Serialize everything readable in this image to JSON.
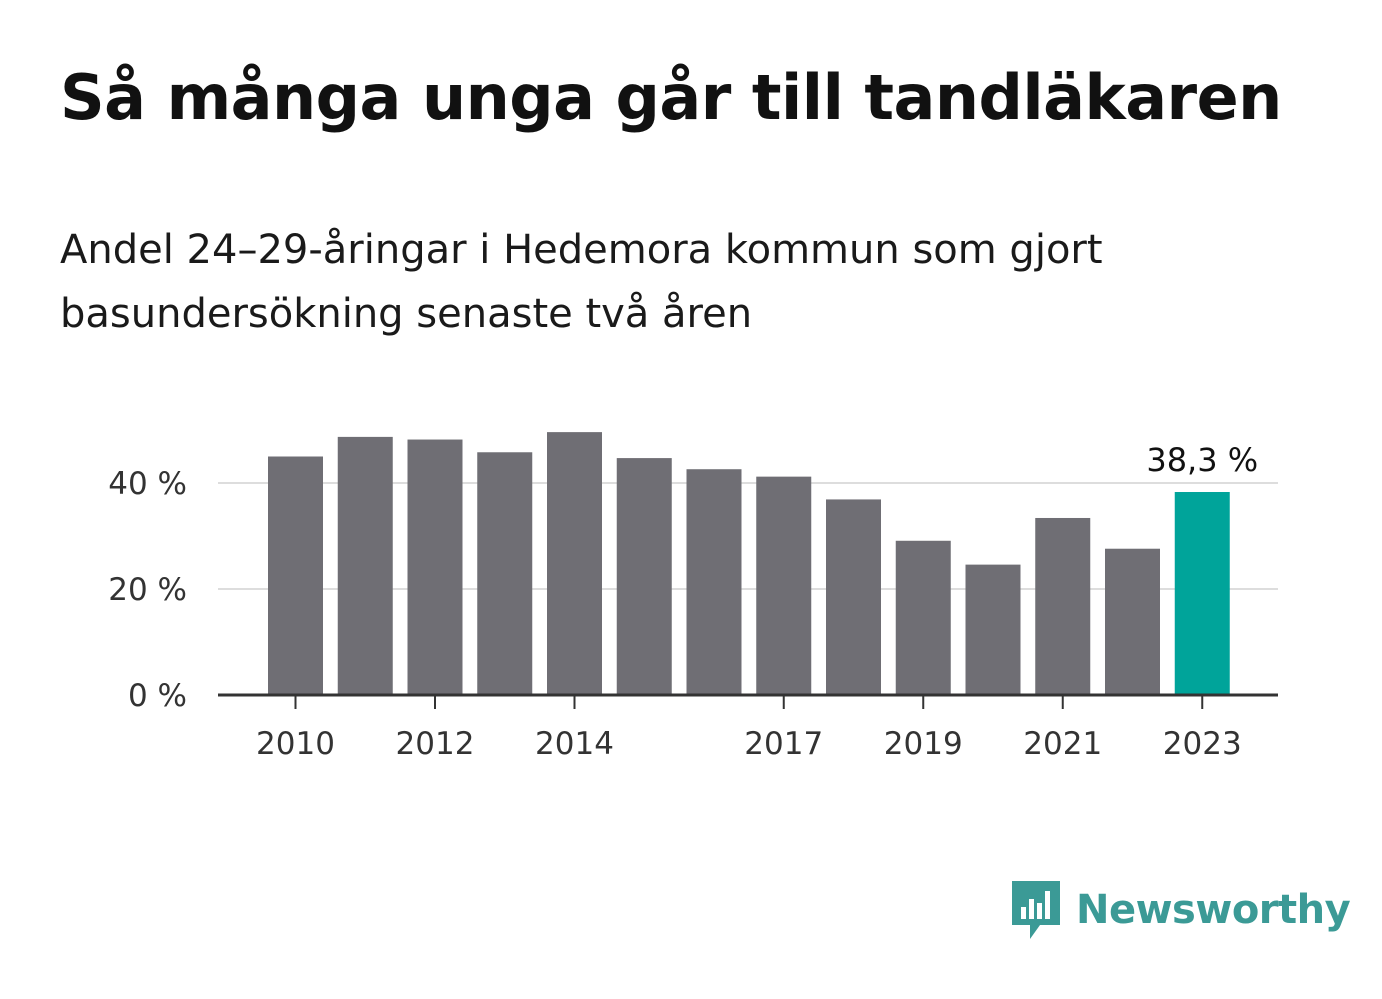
{
  "title": "Så många unga går till tandläkaren",
  "subtitle": "Andel 24–29-åringar i Hedemora kommun som gjort basundersökning senaste två åren",
  "logo_text": "Newsworthy",
  "colors": {
    "bar": "#6f6e74",
    "highlight": "#00a49a",
    "grid": "#dddddd",
    "axis": "#333333",
    "label": "#333333",
    "logo": "#3b9a96"
  },
  "chart_data": {
    "type": "bar",
    "categories": [
      "2010",
      "2011",
      "2012",
      "2013",
      "2014",
      "2015",
      "2016",
      "2017",
      "2018",
      "2019",
      "2020",
      "2021",
      "2022",
      "2023"
    ],
    "values": [
      45.0,
      48.7,
      48.2,
      45.8,
      49.6,
      44.7,
      42.6,
      41.2,
      36.9,
      29.1,
      24.6,
      33.4,
      27.6,
      38.3
    ],
    "x_tick_labels": [
      "2010",
      "",
      "2012",
      "",
      "2014",
      "",
      "",
      "2017",
      "",
      "2019",
      "",
      "2021",
      "",
      "2023"
    ],
    "y_ticks": [
      {
        "value": 0,
        "label": "0 %"
      },
      {
        "value": 20,
        "label": "20 %"
      },
      {
        "value": 40,
        "label": "40 %"
      }
    ],
    "ylim": [
      0,
      50
    ],
    "highlight_index": 13,
    "highlight_label": "38,3 %",
    "grid": true
  }
}
